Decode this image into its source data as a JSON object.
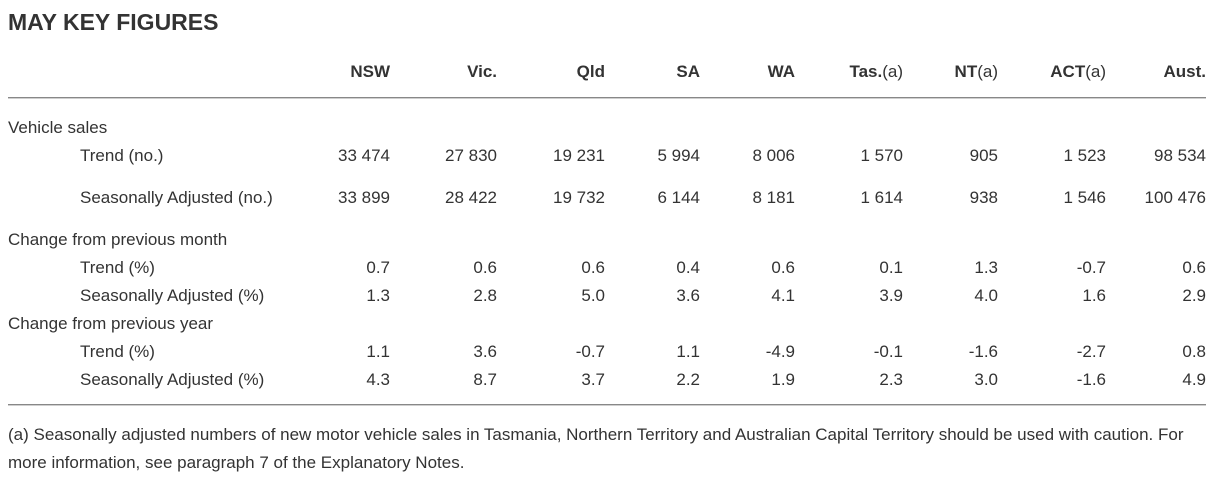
{
  "title": "MAY KEY FIGURES",
  "columns": [
    {
      "label": "NSW",
      "note": ""
    },
    {
      "label": "Vic.",
      "note": ""
    },
    {
      "label": "Qld",
      "note": ""
    },
    {
      "label": "SA",
      "note": ""
    },
    {
      "label": "WA",
      "note": ""
    },
    {
      "label": "Tas.",
      "note": "(a)"
    },
    {
      "label": "NT",
      "note": "(a)"
    },
    {
      "label": "ACT",
      "note": "(a)"
    },
    {
      "label": "Aust.",
      "note": ""
    }
  ],
  "sections": [
    {
      "heading": "Vehicle sales",
      "rows": [
        {
          "label": "Trend (no.)",
          "values": [
            "33 474",
            "27 830",
            "19 231",
            "5 994",
            "8 006",
            "1 570",
            "905",
            "1 523",
            "98 534"
          ]
        },
        {
          "label": "Seasonally Adjusted (no.)",
          "values": [
            "33 899",
            "28 422",
            "19 732",
            "6 144",
            "8 181",
            "1 614",
            "938",
            "1 546",
            "100 476"
          ]
        }
      ]
    },
    {
      "heading": "Change from previous month",
      "rows": [
        {
          "label": "Trend (%)",
          "values": [
            "0.7",
            "0.6",
            "0.6",
            "0.4",
            "0.6",
            "0.1",
            "1.3",
            "-0.7",
            "0.6"
          ]
        },
        {
          "label": "Seasonally Adjusted (%)",
          "values": [
            "1.3",
            "2.8",
            "5.0",
            "3.6",
            "4.1",
            "3.9",
            "4.0",
            "1.6",
            "2.9"
          ]
        }
      ]
    },
    {
      "heading": "Change from previous year",
      "rows": [
        {
          "label": "Trend (%)",
          "values": [
            "1.1",
            "3.6",
            "-0.7",
            "1.1",
            "-4.9",
            "-0.1",
            "-1.6",
            "-2.7",
            "0.8"
          ]
        },
        {
          "label": "Seasonally Adjusted (%)",
          "values": [
            "4.3",
            "8.7",
            "3.7",
            "2.2",
            "1.9",
            "2.3",
            "3.0",
            "-1.6",
            "4.9"
          ]
        }
      ]
    }
  ],
  "footnote": "(a) Seasonally adjusted numbers of new motor vehicle sales in Tasmania, Northern Territory and Australian Capital Territory should be used with caution. For more information, see paragraph 7 of the Explanatory Notes."
}
